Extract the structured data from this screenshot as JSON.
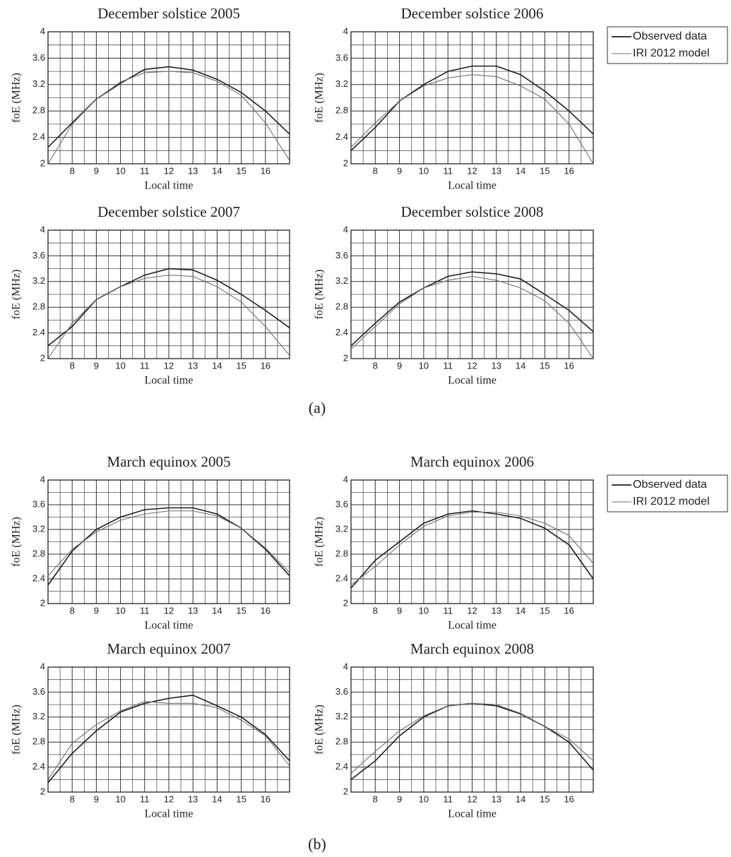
{
  "chart_data": [
    {
      "type": "line",
      "title": "December solstice 2005",
      "xlabel": "Local time",
      "ylabel": "foE (MHz)",
      "x": [
        7,
        8,
        9,
        10,
        11,
        12,
        13,
        14,
        15,
        16,
        17
      ],
      "xlim": [
        7,
        17
      ],
      "ylim": [
        2,
        4
      ],
      "xticks": [
        8,
        9,
        10,
        11,
        12,
        13,
        14,
        15,
        16
      ],
      "yticks": [
        2,
        2.4,
        2.8,
        3.2,
        3.6,
        4
      ],
      "grid": true,
      "minor_grid": true,
      "series": [
        {
          "color": "#1e1e1e",
          "values": [
            2.25,
            2.62,
            2.98,
            3.22,
            3.43,
            3.47,
            3.42,
            3.28,
            3.08,
            2.8,
            2.45
          ]
        },
        {
          "color": "#707070",
          "values": [
            2.0,
            2.6,
            2.98,
            3.24,
            3.38,
            3.4,
            3.38,
            3.25,
            3.04,
            2.62,
            2.05
          ]
        }
      ]
    },
    {
      "type": "line",
      "title": "December solstice 2006",
      "xlabel": "Local time",
      "ylabel": "foE (MHz)",
      "x": [
        7,
        8,
        9,
        10,
        11,
        12,
        13,
        14,
        15,
        16,
        17
      ],
      "xlim": [
        7,
        17
      ],
      "ylim": [
        2,
        4
      ],
      "xticks": [
        8,
        9,
        10,
        11,
        12,
        13,
        14,
        15,
        16
      ],
      "yticks": [
        2,
        2.4,
        2.8,
        3.2,
        3.6,
        4
      ],
      "grid": true,
      "minor_grid": true,
      "legend": "outside-right",
      "series": [
        {
          "name": "Observed data",
          "color": "#1e1e1e",
          "values": [
            2.2,
            2.55,
            2.95,
            3.2,
            3.4,
            3.48,
            3.48,
            3.35,
            3.1,
            2.8,
            2.45
          ]
        },
        {
          "name": "IRI 2012 model",
          "color": "#707070",
          "values": [
            2.25,
            2.62,
            2.95,
            3.18,
            3.3,
            3.35,
            3.32,
            3.18,
            2.98,
            2.6,
            2.0
          ]
        }
      ]
    },
    {
      "type": "line",
      "title": "December solstice 2007",
      "xlabel": "Local time",
      "ylabel": "foE (MHz)",
      "x": [
        7,
        8,
        9,
        10,
        11,
        12,
        13,
        14,
        15,
        16,
        17
      ],
      "xlim": [
        7,
        17
      ],
      "ylim": [
        2,
        4
      ],
      "xticks": [
        8,
        9,
        10,
        11,
        12,
        13,
        14,
        15,
        16
      ],
      "yticks": [
        2,
        2.4,
        2.8,
        3.2,
        3.6,
        4
      ],
      "grid": true,
      "minor_grid": true,
      "series": [
        {
          "color": "#1e1e1e",
          "values": [
            2.2,
            2.5,
            2.92,
            3.12,
            3.3,
            3.4,
            3.38,
            3.22,
            3.0,
            2.75,
            2.48
          ]
        },
        {
          "color": "#707070",
          "values": [
            2.0,
            2.55,
            2.92,
            3.12,
            3.25,
            3.3,
            3.28,
            3.12,
            2.88,
            2.5,
            2.05
          ]
        }
      ]
    },
    {
      "type": "line",
      "title": "December solstice 2008",
      "xlabel": "Local time",
      "ylabel": "foE (MHz)",
      "x": [
        7,
        8,
        9,
        10,
        11,
        12,
        13,
        14,
        15,
        16,
        17
      ],
      "xlim": [
        7,
        17
      ],
      "ylim": [
        2,
        4
      ],
      "xticks": [
        8,
        9,
        10,
        11,
        12,
        13,
        14,
        15,
        16
      ],
      "yticks": [
        2,
        2.4,
        2.8,
        3.2,
        3.6,
        4
      ],
      "grid": true,
      "minor_grid": true,
      "series": [
        {
          "color": "#1e1e1e",
          "values": [
            2.2,
            2.55,
            2.88,
            3.1,
            3.28,
            3.35,
            3.32,
            3.24,
            3.0,
            2.75,
            2.42
          ]
        },
        {
          "color": "#707070",
          "values": [
            2.15,
            2.5,
            2.85,
            3.1,
            3.22,
            3.28,
            3.22,
            3.1,
            2.9,
            2.55,
            2.0
          ]
        }
      ]
    },
    {
      "type": "line",
      "title": "March equinox 2005",
      "xlabel": "Local time",
      "ylabel": "foE (MHz)",
      "x": [
        7,
        8,
        9,
        10,
        11,
        12,
        13,
        14,
        15,
        16,
        17
      ],
      "xlim": [
        7,
        17
      ],
      "ylim": [
        2,
        4
      ],
      "xticks": [
        8,
        9,
        10,
        11,
        12,
        13,
        14,
        15,
        16
      ],
      "yticks": [
        2,
        2.4,
        2.8,
        3.2,
        3.6,
        4
      ],
      "grid": true,
      "minor_grid": true,
      "series": [
        {
          "color": "#1e1e1e",
          "values": [
            2.3,
            2.85,
            3.2,
            3.4,
            3.52,
            3.55,
            3.55,
            3.45,
            3.22,
            2.88,
            2.45
          ]
        },
        {
          "color": "#707070",
          "values": [
            2.45,
            2.88,
            3.16,
            3.35,
            3.45,
            3.5,
            3.5,
            3.42,
            3.22,
            2.9,
            2.5
          ]
        }
      ]
    },
    {
      "type": "line",
      "title": "March equinox 2006",
      "xlabel": "Local time",
      "ylabel": "foE (MHz)",
      "x": [
        7,
        8,
        9,
        10,
        11,
        12,
        13,
        14,
        15,
        16,
        17
      ],
      "xlim": [
        7,
        17
      ],
      "ylim": [
        2,
        4
      ],
      "xticks": [
        8,
        9,
        10,
        11,
        12,
        13,
        14,
        15,
        16
      ],
      "yticks": [
        2,
        2.4,
        2.8,
        3.2,
        3.6,
        4
      ],
      "grid": true,
      "minor_grid": true,
      "legend": "outside-right",
      "series": [
        {
          "name": "Observed data",
          "color": "#1e1e1e",
          "values": [
            2.25,
            2.7,
            3.0,
            3.3,
            3.45,
            3.5,
            3.45,
            3.38,
            3.22,
            2.95,
            2.4
          ]
        },
        {
          "name": "IRI 2012 model",
          "color": "#707070",
          "values": [
            2.3,
            2.6,
            2.95,
            3.25,
            3.42,
            3.48,
            3.48,
            3.42,
            3.3,
            3.1,
            2.65
          ]
        }
      ]
    },
    {
      "type": "line",
      "title": "March equinox 2007",
      "xlabel": "Local time",
      "ylabel": "foE (MHz)",
      "x": [
        7,
        8,
        9,
        10,
        11,
        12,
        13,
        14,
        15,
        16,
        17
      ],
      "xlim": [
        7,
        17
      ],
      "ylim": [
        2,
        4
      ],
      "xticks": [
        8,
        9,
        10,
        11,
        12,
        13,
        14,
        15,
        16
      ],
      "yticks": [
        2,
        2.4,
        2.8,
        3.2,
        3.6,
        4
      ],
      "grid": true,
      "minor_grid": true,
      "series": [
        {
          "color": "#1e1e1e",
          "values": [
            2.15,
            2.62,
            2.98,
            3.28,
            3.42,
            3.5,
            3.55,
            3.38,
            3.2,
            2.92,
            2.5
          ]
        },
        {
          "color": "#707070",
          "values": [
            2.2,
            2.78,
            3.08,
            3.3,
            3.45,
            3.42,
            3.42,
            3.35,
            3.15,
            2.9,
            2.42
          ]
        }
      ]
    },
    {
      "type": "line",
      "title": "March equinox 2008",
      "xlabel": "Local time",
      "ylabel": "foE (MHz)",
      "x": [
        7,
        8,
        9,
        10,
        11,
        12,
        13,
        14,
        15,
        16,
        17
      ],
      "xlim": [
        7,
        17
      ],
      "ylim": [
        2,
        4
      ],
      "xticks": [
        8,
        9,
        10,
        11,
        12,
        13,
        14,
        15,
        16
      ],
      "yticks": [
        2,
        2.4,
        2.8,
        3.2,
        3.6,
        4
      ],
      "grid": true,
      "minor_grid": true,
      "series": [
        {
          "color": "#1e1e1e",
          "values": [
            2.2,
            2.5,
            2.9,
            3.2,
            3.38,
            3.42,
            3.38,
            3.25,
            3.05,
            2.8,
            2.35
          ]
        },
        {
          "color": "#707070",
          "values": [
            2.3,
            2.65,
            2.98,
            3.22,
            3.38,
            3.42,
            3.4,
            3.26,
            3.05,
            2.85,
            2.5
          ]
        }
      ]
    }
  ],
  "panels": [
    {
      "label": "(a)"
    },
    {
      "label": "(b)"
    }
  ]
}
